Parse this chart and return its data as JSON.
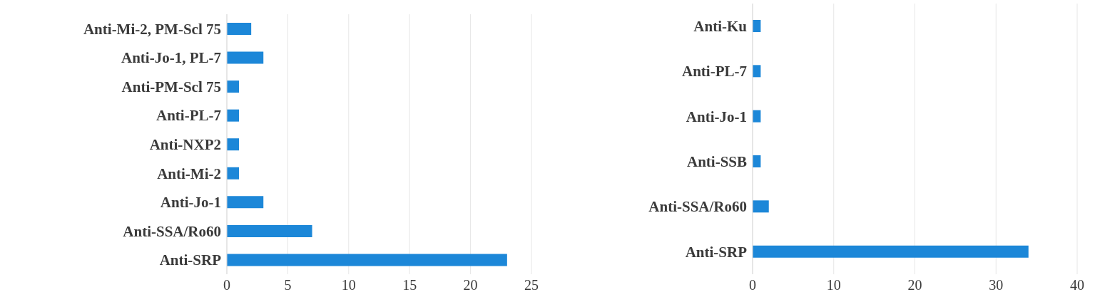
{
  "chart_data": [
    {
      "type": "bar",
      "orientation": "horizontal",
      "categories": [
        "Anti-Mi-2, PM-Scl 75",
        "Anti-Jo-1, PL-7",
        "Anti-PM-Scl 75",
        "Anti-PL-7",
        "Anti-NXP2",
        "Anti-Mi-2",
        "Anti-Jo-1",
        "Anti-SSA/Ro60",
        "Anti-SRP"
      ],
      "values": [
        2,
        3,
        1,
        1,
        1,
        1,
        3,
        7,
        23
      ],
      "color": "#1c87d8",
      "xlim": [
        0,
        25
      ],
      "xticks": [
        0,
        5,
        10,
        15,
        20,
        25
      ],
      "grid": "x"
    },
    {
      "type": "bar",
      "orientation": "horizontal",
      "categories": [
        "Anti-Ku",
        "Anti-PL-7",
        "Anti-Jo-1",
        "Anti-SSB",
        "Anti-SSA/Ro60",
        "Anti-SRP"
      ],
      "values": [
        1,
        1,
        1,
        1,
        2,
        34
      ],
      "color": "#1c87d8",
      "xlim": [
        0,
        40
      ],
      "xticks": [
        0,
        10,
        20,
        30,
        40
      ],
      "grid": "x"
    }
  ]
}
